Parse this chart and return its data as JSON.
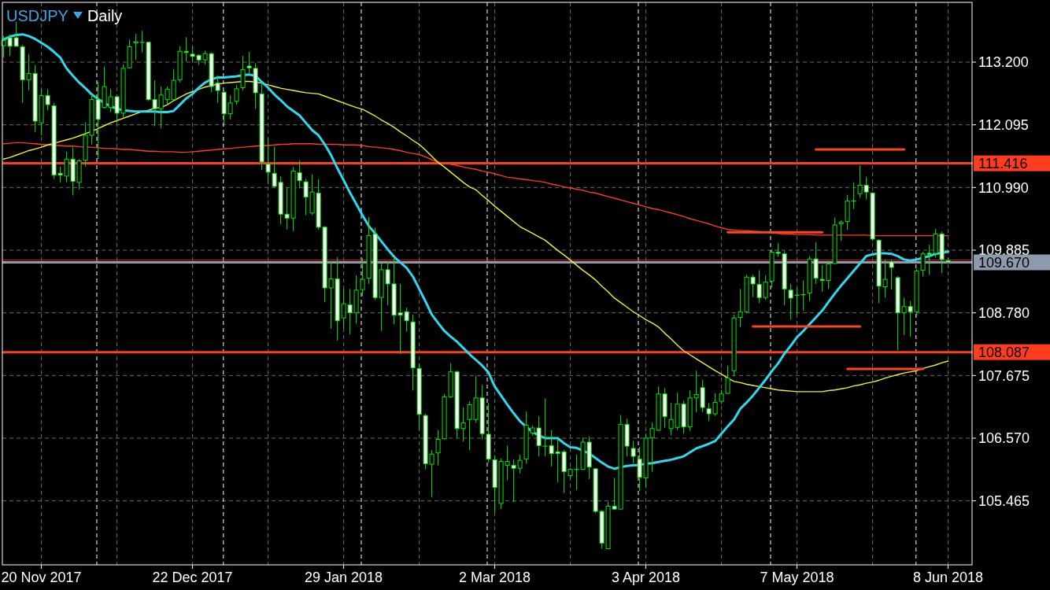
{
  "chart_data": {
    "type": "candlestick",
    "title": "USDJPY",
    "subtitle": "Daily",
    "color": "#00e600",
    "categories": [
      null,
      null,
      null,
      null,
      null,
      null,
      "20 Nov 2017",
      null,
      null,
      null,
      null,
      null,
      null,
      null,
      null,
      null,
      null,
      null,
      null,
      null,
      null,
      null,
      null,
      null,
      null,
      null,
      null,
      null,
      null,
      null,
      "22 Dec 2017",
      null,
      null,
      null,
      null,
      null,
      null,
      null,
      null,
      null,
      null,
      null,
      null,
      null,
      null,
      null,
      null,
      null,
      null,
      null,
      null,
      null,
      null,
      null,
      "29 Jan 2018",
      null,
      null,
      null,
      null,
      null,
      null,
      null,
      null,
      null,
      null,
      null,
      null,
      null,
      null,
      null,
      null,
      null,
      null,
      null,
      null,
      null,
      null,
      null,
      "2 Mar 2018",
      null,
      null,
      null,
      null,
      null,
      null,
      null,
      null,
      null,
      null,
      null,
      null,
      null,
      null,
      null,
      null,
      null,
      null,
      null,
      null,
      null,
      null,
      null,
      "3 Apr 2018",
      null,
      null,
      null,
      null,
      null,
      null,
      null,
      null,
      null,
      null,
      null,
      null,
      null,
      null,
      null,
      null,
      null,
      null,
      null,
      null,
      null,
      null,
      null,
      "7 May 2018",
      null,
      null,
      null,
      null,
      null,
      null,
      null,
      null,
      null,
      null,
      null,
      null,
      null,
      null,
      null,
      null,
      null,
      null,
      null,
      null,
      null,
      null,
      null,
      "8 Jun 2018"
    ],
    "ylim": [
      104.337,
      114.254
    ],
    "yticks": [
      {
        "value": 105.465,
        "label": "105.465"
      },
      {
        "value": 106.57,
        "label": "106.570"
      },
      {
        "value": 107.675,
        "label": "107.675"
      },
      {
        "value": 108.78,
        "label": "108.780"
      },
      {
        "value": 109.885,
        "label": "109.885"
      },
      {
        "value": 110.99,
        "label": "110.990"
      },
      {
        "value": 112.095,
        "label": "112.095"
      },
      {
        "value": 113.2,
        "label": "113.200"
      }
    ],
    "grid": true,
    "ohlc": [
      [
        113.49,
        113.66,
        113.28,
        113.58
      ],
      [
        113.63,
        113.69,
        113.31,
        113.48
      ],
      [
        113.63,
        113.91,
        113.47,
        113.48
      ],
      [
        113.47,
        113.5,
        112.48,
        112.89
      ],
      [
        112.89,
        113.34,
        112.7,
        113.0
      ],
      [
        113.0,
        113.15,
        111.97,
        112.16
      ],
      [
        112.13,
        112.73,
        111.91,
        112.61
      ],
      [
        112.61,
        112.72,
        112.35,
        112.45
      ],
      [
        112.43,
        112.48,
        111.14,
        111.21
      ],
      [
        111.24,
        111.36,
        111.08,
        111.21
      ],
      [
        111.19,
        111.62,
        111.08,
        111.49
      ],
      [
        111.49,
        111.7,
        110.85,
        111.1
      ],
      [
        111.08,
        111.49,
        110.95,
        111.46
      ],
      [
        111.47,
        112.14,
        111.36,
        111.91
      ],
      [
        111.91,
        112.64,
        111.75,
        112.54
      ],
      [
        112.54,
        112.86,
        111.49,
        112.19
      ],
      [
        112.4,
        113.12,
        112.38,
        112.77
      ],
      [
        112.4,
        112.73,
        112.32,
        112.59
      ],
      [
        112.59,
        112.61,
        112.13,
        112.3
      ],
      [
        112.3,
        113.16,
        112.22,
        113.09
      ],
      [
        113.1,
        113.6,
        113.09,
        113.47
      ],
      [
        113.54,
        113.7,
        113.24,
        113.56
      ],
      [
        113.56,
        113.75,
        113.37,
        113.55
      ],
      [
        113.55,
        113.56,
        112.51,
        112.54
      ],
      [
        112.54,
        112.88,
        112.07,
        112.38
      ],
      [
        112.38,
        112.77,
        112.03,
        112.62
      ],
      [
        112.54,
        112.77,
        112.45,
        112.72
      ],
      [
        112.54,
        113.08,
        112.51,
        112.88
      ],
      [
        112.89,
        113.48,
        112.84,
        113.39
      ],
      [
        113.39,
        113.64,
        113.21,
        113.37
      ],
      [
        113.34,
        113.47,
        113.21,
        113.3
      ],
      [
        113.32,
        113.34,
        113.15,
        113.24
      ],
      [
        113.24,
        113.4,
        113.16,
        113.35
      ],
      [
        113.35,
        113.37,
        112.67,
        112.77
      ],
      [
        112.83,
        112.97,
        112.48,
        112.7
      ],
      [
        112.67,
        112.7,
        112.1,
        112.29
      ],
      [
        112.29,
        112.61,
        112.19,
        112.48
      ],
      [
        112.51,
        112.8,
        112.45,
        112.73
      ],
      [
        112.75,
        113.31,
        112.7,
        113.07
      ],
      [
        113.13,
        113.38,
        112.99,
        113.1
      ],
      [
        113.09,
        113.18,
        112.38,
        112.66
      ],
      [
        112.64,
        112.84,
        111.3,
        111.44
      ],
      [
        111.4,
        111.87,
        111.05,
        111.26
      ],
      [
        111.24,
        111.71,
        110.98,
        111.01
      ],
      [
        111.08,
        111.19,
        110.34,
        110.52
      ],
      [
        110.52,
        110.99,
        110.25,
        110.45
      ],
      [
        110.45,
        111.35,
        110.22,
        111.28
      ],
      [
        111.25,
        111.47,
        110.98,
        111.11
      ],
      [
        111.09,
        111.14,
        110.5,
        110.82
      ],
      [
        110.54,
        111.22,
        110.5,
        110.91
      ],
      [
        110.89,
        111.14,
        110.25,
        110.29
      ],
      [
        110.29,
        110.31,
        108.97,
        109.22
      ],
      [
        109.22,
        109.69,
        108.5,
        109.38
      ],
      [
        109.38,
        109.76,
        108.29,
        108.64
      ],
      [
        108.69,
        109.2,
        108.5,
        108.94
      ],
      [
        108.92,
        109.2,
        108.4,
        108.78
      ],
      [
        108.78,
        109.44,
        108.59,
        109.18
      ],
      [
        109.19,
        109.74,
        109.07,
        109.37
      ],
      [
        109.39,
        110.47,
        109.29,
        110.14
      ],
      [
        110.17,
        110.28,
        109.01,
        109.05
      ],
      [
        109.05,
        109.65,
        108.46,
        109.54
      ],
      [
        109.54,
        109.69,
        108.91,
        109.29
      ],
      [
        109.29,
        109.76,
        108.58,
        108.74
      ],
      [
        108.78,
        109.29,
        108.05,
        108.74
      ],
      [
        108.8,
        108.87,
        108.45,
        108.64
      ],
      [
        108.62,
        108.75,
        107.41,
        107.81
      ],
      [
        107.8,
        107.89,
        106.71,
        106.99
      ],
      [
        106.97,
        107.0,
        106.02,
        106.12
      ],
      [
        106.11,
        106.36,
        105.53,
        106.29
      ],
      [
        106.31,
        106.71,
        106.09,
        106.55
      ],
      [
        106.56,
        107.35,
        106.55,
        107.3
      ],
      [
        107.3,
        107.89,
        107.28,
        107.74
      ],
      [
        107.74,
        107.76,
        106.58,
        106.74
      ],
      [
        106.74,
        107.11,
        106.51,
        106.84
      ],
      [
        106.9,
        107.22,
        106.36,
        107.16
      ],
      [
        106.9,
        107.67,
        106.84,
        107.28
      ],
      [
        107.28,
        107.51,
        106.55,
        106.65
      ],
      [
        106.64,
        107.19,
        106.14,
        106.2
      ],
      [
        106.19,
        106.27,
        105.25,
        105.7
      ],
      [
        105.42,
        106.21,
        105.32,
        106.16
      ],
      [
        106.09,
        106.44,
        105.83,
        106.16
      ],
      [
        106.09,
        106.2,
        105.44,
        106.04
      ],
      [
        106.04,
        106.28,
        105.95,
        106.18
      ],
      [
        106.2,
        107.04,
        106.12,
        106.8
      ],
      [
        106.66,
        106.79,
        106.62,
        106.75
      ],
      [
        106.75,
        106.95,
        106.25,
        106.44
      ],
      [
        106.44,
        107.27,
        106.25,
        106.43
      ],
      [
        106.44,
        106.71,
        106.07,
        106.3
      ],
      [
        106.33,
        106.55,
        105.79,
        106.3
      ],
      [
        106.33,
        106.36,
        105.6,
        105.98
      ],
      [
        105.91,
        106.05,
        105.85,
        106.02
      ],
      [
        106.01,
        106.28,
        105.66,
        106.02
      ],
      [
        106.02,
        106.58,
        106.01,
        106.5
      ],
      [
        106.5,
        106.6,
        105.85,
        106.06
      ],
      [
        106.03,
        106.04,
        105.25,
        105.28
      ],
      [
        105.28,
        105.3,
        104.62,
        104.72
      ],
      [
        104.62,
        105.45,
        104.61,
        105.37
      ],
      [
        105.37,
        105.87,
        105.31,
        105.32
      ],
      [
        105.32,
        106.98,
        105.31,
        106.81
      ],
      [
        106.81,
        106.91,
        106.25,
        106.43
      ],
      [
        106.39,
        106.52,
        106.12,
        106.25
      ],
      [
        106.2,
        106.42,
        105.64,
        105.88
      ],
      [
        105.87,
        106.65,
        105.69,
        106.57
      ],
      [
        106.58,
        106.84,
        105.98,
        106.74
      ],
      [
        106.71,
        107.48,
        106.7,
        107.35
      ],
      [
        107.35,
        107.45,
        106.75,
        106.95
      ],
      [
        106.74,
        107.19,
        106.62,
        106.9
      ],
      [
        106.76,
        107.37,
        106.71,
        107.17
      ],
      [
        107.17,
        107.23,
        106.65,
        106.77
      ],
      [
        106.77,
        107.41,
        106.7,
        107.28
      ],
      [
        107.28,
        107.76,
        107.03,
        107.34
      ],
      [
        107.46,
        107.6,
        107.03,
        107.11
      ],
      [
        107.09,
        107.19,
        106.87,
        107.0
      ],
      [
        107.0,
        107.36,
        106.96,
        107.2
      ],
      [
        107.22,
        107.42,
        107.17,
        107.35
      ],
      [
        107.36,
        107.85,
        107.35,
        107.63
      ],
      [
        107.76,
        108.75,
        107.67,
        108.69
      ],
      [
        108.7,
        109.2,
        108.53,
        108.8
      ],
      [
        108.8,
        109.45,
        108.78,
        109.41
      ],
      [
        109.41,
        109.45,
        109.06,
        109.29
      ],
      [
        109.28,
        109.53,
        108.95,
        109.05
      ],
      [
        109.05,
        109.44,
        109.01,
        109.32
      ],
      [
        109.34,
        109.9,
        109.23,
        109.85
      ],
      [
        109.85,
        110.01,
        109.77,
        109.83
      ],
      [
        109.82,
        109.87,
        108.91,
        109.2
      ],
      [
        109.18,
        109.29,
        108.66,
        109.04
      ],
      [
        109.1,
        109.22,
        108.76,
        109.09
      ],
      [
        109.11,
        109.35,
        108.82,
        109.1
      ],
      [
        109.13,
        109.78,
        108.99,
        109.73
      ],
      [
        109.73,
        110.02,
        109.29,
        109.39
      ],
      [
        109.37,
        109.62,
        109.15,
        109.35
      ],
      [
        109.35,
        109.66,
        109.2,
        109.64
      ],
      [
        109.65,
        110.46,
        109.64,
        110.33
      ],
      [
        110.35,
        110.41,
        110.05,
        110.38
      ],
      [
        110.39,
        110.86,
        110.24,
        110.75
      ],
      [
        110.74,
        111.08,
        110.61,
        110.75
      ],
      [
        110.88,
        111.38,
        110.81,
        111.03
      ],
      [
        111.03,
        111.18,
        110.78,
        110.91
      ],
      [
        110.89,
        110.91,
        110.05,
        110.08
      ],
      [
        110.06,
        110.08,
        108.95,
        109.25
      ],
      [
        109.24,
        109.72,
        109.05,
        109.37
      ],
      [
        109.68,
        109.72,
        109.19,
        109.58
      ],
      [
        109.4,
        109.43,
        108.12,
        108.78
      ],
      [
        108.78,
        109.05,
        108.39,
        108.89
      ],
      [
        108.89,
        108.99,
        108.36,
        108.8
      ],
      [
        108.8,
        109.55,
        108.72,
        109.52
      ],
      [
        109.53,
        109.86,
        109.42,
        109.82
      ],
      [
        109.83,
        109.98,
        109.45,
        109.81
      ],
      [
        109.83,
        110.26,
        109.75,
        110.17
      ],
      [
        110.17,
        110.21,
        109.48,
        109.72
      ],
      [
        109.7,
        109.75,
        109.65,
        109.67
      ]
    ],
    "series": [
      {
        "type": "line",
        "color": "#ff3b22",
        "values": [
          111.76,
          111.77,
          111.78,
          111.78,
          111.77,
          111.76,
          111.75,
          111.74,
          111.73,
          111.73,
          111.72,
          111.72,
          111.71,
          111.7,
          111.7,
          111.69,
          111.68,
          111.68,
          111.67,
          111.66,
          111.66,
          111.65,
          111.64,
          111.63,
          111.63,
          111.62,
          111.62,
          111.62,
          111.61,
          111.61,
          111.62,
          111.63,
          111.64,
          111.65,
          111.66,
          111.67,
          111.68,
          111.69,
          111.7,
          111.71,
          111.72,
          111.73,
          111.73,
          111.74,
          111.75,
          111.75,
          111.76,
          111.76,
          111.76,
          111.76,
          111.75,
          111.75,
          111.75,
          111.75,
          111.74,
          111.74,
          111.74,
          111.73,
          111.71,
          111.7,
          111.69,
          111.68,
          111.66,
          111.64,
          111.61,
          111.59,
          111.57,
          111.53,
          111.48,
          111.44,
          111.42,
          111.4,
          111.38,
          111.35,
          111.33,
          111.31,
          111.28,
          111.26,
          111.23,
          111.2,
          111.17,
          111.16,
          111.14,
          111.13,
          111.11,
          111.1,
          111.08,
          111.05,
          111.03,
          111.0,
          110.98,
          110.96,
          110.94,
          110.91,
          110.89,
          110.86,
          110.83,
          110.8,
          110.77,
          110.74,
          110.71,
          110.68,
          110.65,
          110.62,
          110.6,
          110.57,
          110.54,
          110.51,
          110.48,
          110.44,
          110.41,
          110.38,
          110.35,
          110.31,
          110.28,
          110.25,
          110.24,
          110.23,
          110.23,
          110.22,
          110.21,
          110.2,
          110.19,
          110.18,
          110.17,
          110.17,
          110.16,
          110.16,
          110.16,
          110.15,
          110.15,
          110.15,
          110.15,
          110.15,
          110.15,
          110.15,
          110.15,
          110.15,
          110.14,
          110.14,
          110.14,
          110.14,
          110.14,
          110.14,
          110.14,
          110.14,
          110.14,
          110.14,
          110.14,
          110.14,
          110.14
        ]
      },
      {
        "type": "line",
        "color": "#f0f032",
        "values": [
          111.49,
          111.52,
          111.56,
          111.6,
          111.64,
          111.67,
          111.7,
          111.74,
          111.77,
          111.8,
          111.83,
          111.86,
          111.9,
          111.94,
          111.98,
          112.03,
          112.08,
          112.13,
          112.17,
          112.21,
          112.25,
          112.29,
          112.33,
          112.35,
          112.39,
          112.4,
          112.45,
          112.52,
          112.58,
          112.64,
          112.68,
          112.72,
          112.76,
          112.79,
          112.81,
          112.83,
          112.84,
          112.85,
          112.86,
          112.86,
          112.85,
          112.83,
          112.8,
          112.77,
          112.74,
          112.72,
          112.7,
          112.68,
          112.66,
          112.65,
          112.64,
          112.6,
          112.56,
          112.52,
          112.48,
          112.44,
          112.4,
          112.37,
          112.31,
          112.25,
          112.18,
          112.12,
          112.05,
          111.97,
          111.9,
          111.82,
          111.75,
          111.65,
          111.54,
          111.43,
          111.35,
          111.26,
          111.17,
          111.08,
          111.0,
          110.95,
          110.85,
          110.76,
          110.66,
          110.57,
          110.48,
          110.39,
          110.3,
          110.24,
          110.18,
          110.12,
          110.06,
          109.97,
          109.88,
          109.8,
          109.71,
          109.62,
          109.53,
          109.45,
          109.36,
          109.25,
          109.15,
          109.04,
          108.96,
          108.88,
          108.8,
          108.73,
          108.66,
          108.6,
          108.53,
          108.42,
          108.32,
          108.21,
          108.11,
          108.04,
          107.97,
          107.9,
          107.83,
          107.76,
          107.7,
          107.63,
          107.57,
          107.55,
          107.52,
          107.5,
          107.48,
          107.46,
          107.44,
          107.42,
          107.41,
          107.4,
          107.39,
          107.39,
          107.39,
          107.39,
          107.39,
          107.41,
          107.42,
          107.44,
          107.46,
          107.49,
          107.51,
          107.54,
          107.56,
          107.59,
          107.63,
          107.66,
          107.69,
          107.72,
          107.74,
          107.76,
          107.8,
          107.83,
          107.86,
          107.9,
          107.93
        ]
      },
      {
        "type": "line",
        "color": "#2ed8f0",
        "values": [
          113.6,
          113.65,
          113.68,
          113.69,
          113.66,
          113.61,
          113.54,
          113.47,
          113.38,
          113.28,
          113.09,
          112.96,
          112.84,
          112.74,
          112.63,
          112.55,
          112.48,
          112.42,
          112.38,
          112.35,
          112.34,
          112.33,
          112.33,
          112.33,
          112.33,
          112.32,
          112.32,
          112.34,
          112.45,
          112.56,
          112.64,
          112.75,
          112.84,
          112.9,
          112.93,
          112.93,
          112.94,
          112.95,
          112.97,
          112.98,
          112.96,
          112.85,
          112.75,
          112.63,
          112.53,
          112.42,
          112.34,
          112.26,
          112.13,
          112.0,
          111.91,
          111.75,
          111.56,
          111.33,
          111.12,
          110.9,
          110.7,
          110.5,
          110.31,
          110.18,
          110.04,
          109.9,
          109.77,
          109.67,
          109.57,
          109.42,
          109.2,
          108.98,
          108.75,
          108.6,
          108.46,
          108.36,
          108.27,
          108.16,
          108.05,
          107.95,
          107.85,
          107.73,
          107.48,
          107.32,
          107.16,
          107.01,
          106.87,
          106.77,
          106.68,
          106.62,
          106.57,
          106.57,
          106.57,
          106.48,
          106.41,
          106.4,
          106.35,
          106.3,
          106.22,
          106.14,
          106.07,
          106.03,
          106.06,
          106.08,
          106.09,
          106.1,
          106.12,
          106.13,
          106.15,
          106.17,
          106.19,
          106.22,
          106.25,
          106.32,
          106.39,
          106.43,
          106.47,
          106.52,
          106.65,
          106.78,
          106.9,
          107.09,
          107.2,
          107.32,
          107.46,
          107.6,
          107.75,
          107.89,
          108.06,
          108.2,
          108.35,
          108.46,
          108.58,
          108.7,
          108.82,
          108.97,
          109.12,
          109.26,
          109.39,
          109.52,
          109.65,
          109.78,
          109.81,
          109.83,
          109.83,
          109.82,
          109.78,
          109.72,
          109.7,
          109.72,
          109.75,
          109.78,
          109.82,
          109.84,
          109.86
        ]
      },
      {
        "type": "line",
        "color": "#ff4422",
        "values": [
          null,
          null,
          null,
          null,
          null,
          null,
          null,
          null,
          null,
          null,
          null,
          null,
          null,
          null,
          null,
          null,
          null,
          null,
          null,
          null,
          null,
          null,
          null,
          null,
          null,
          null,
          null,
          null,
          null,
          null,
          null,
          null,
          null,
          null,
          null,
          null,
          null,
          null,
          null,
          null,
          null,
          null,
          null,
          null,
          null,
          null,
          null,
          null,
          null,
          null,
          null,
          null,
          null,
          null,
          null,
          null,
          null,
          null,
          null,
          null,
          null,
          null,
          null,
          null,
          null,
          null,
          null,
          null,
          null,
          null,
          null,
          null,
          null,
          null,
          null,
          null,
          null,
          null,
          null,
          null,
          null,
          null,
          null,
          null,
          null,
          null,
          null,
          null,
          null,
          null,
          null,
          null,
          null,
          null,
          null,
          null,
          null,
          null,
          null,
          null,
          null,
          null,
          null,
          null,
          null,
          null,
          null,
          null,
          null,
          null,
          null,
          null,
          null,
          null,
          null,
          null,
          null,
          null,
          null,
          null,
          null,
          null,
          null,
          null,
          null,
          null,
          null,
          null,
          null,
          111.66,
          111.66,
          111.66,
          111.66,
          111.66,
          111.66,
          111.66,
          111.66,
          111.66,
          111.66,
          111.66,
          111.66,
          111.66,
          111.66,
          111.66,
          null,
          null,
          null,
          null,
          null,
          null,
          null
        ]
      },
      {
        "type": "line",
        "color": "#ff4422",
        "values": [
          null,
          null,
          null,
          null,
          null,
          null,
          null,
          null,
          null,
          null,
          null,
          null,
          null,
          null,
          null,
          null,
          null,
          null,
          null,
          null,
          null,
          null,
          null,
          null,
          null,
          null,
          null,
          null,
          null,
          null,
          null,
          null,
          null,
          null,
          null,
          null,
          null,
          null,
          null,
          null,
          null,
          null,
          null,
          null,
          null,
          null,
          null,
          null,
          null,
          null,
          null,
          null,
          null,
          null,
          null,
          null,
          null,
          null,
          null,
          null,
          null,
          null,
          null,
          null,
          null,
          null,
          null,
          null,
          null,
          null,
          null,
          null,
          null,
          null,
          null,
          null,
          null,
          null,
          null,
          null,
          null,
          null,
          null,
          null,
          null,
          null,
          null,
          null,
          null,
          null,
          null,
          null,
          null,
          null,
          null,
          null,
          null,
          null,
          null,
          null,
          null,
          null,
          null,
          null,
          null,
          null,
          null,
          null,
          null,
          null,
          null,
          null,
          null,
          null,
          null,
          110.2,
          110.2,
          110.2,
          110.2,
          110.2,
          110.2,
          110.2,
          110.2,
          110.2,
          110.2,
          110.2,
          110.2,
          110.2,
          110.2,
          110.2,
          110.2,
          null,
          null,
          null,
          null,
          null,
          null,
          null,
          null,
          null,
          null,
          null,
          null,
          null,
          null,
          null,
          null,
          null,
          null,
          null,
          null
        ]
      },
      {
        "type": "line",
        "color": "#ff4422",
        "values": [
          null,
          null,
          null,
          null,
          null,
          null,
          null,
          null,
          null,
          null,
          null,
          null,
          null,
          null,
          null,
          null,
          null,
          null,
          null,
          null,
          null,
          null,
          null,
          null,
          null,
          null,
          null,
          null,
          null,
          null,
          null,
          null,
          null,
          null,
          null,
          null,
          null,
          null,
          null,
          null,
          null,
          null,
          null,
          null,
          null,
          null,
          null,
          null,
          null,
          null,
          null,
          null,
          null,
          null,
          null,
          null,
          null,
          null,
          null,
          null,
          null,
          null,
          null,
          null,
          null,
          null,
          null,
          null,
          null,
          null,
          null,
          null,
          null,
          null,
          null,
          null,
          null,
          null,
          null,
          null,
          null,
          null,
          null,
          null,
          null,
          null,
          null,
          null,
          null,
          null,
          null,
          null,
          null,
          null,
          null,
          null,
          null,
          null,
          null,
          null,
          null,
          null,
          null,
          null,
          null,
          null,
          null,
          null,
          null,
          null,
          null,
          null,
          null,
          null,
          null,
          null,
          null,
          null,
          null,
          108.54,
          108.54,
          108.54,
          108.54,
          108.54,
          108.54,
          108.54,
          108.54,
          108.54,
          108.54,
          108.54,
          108.54,
          108.54,
          108.54,
          108.54,
          108.54,
          108.54,
          108.54,
          null,
          null,
          null,
          null,
          null,
          null,
          null,
          null,
          null,
          null,
          null,
          null,
          null,
          null
        ]
      },
      {
        "type": "line",
        "color": "#ff4422",
        "values": [
          null,
          null,
          null,
          null,
          null,
          null,
          null,
          null,
          null,
          null,
          null,
          null,
          null,
          null,
          null,
          null,
          null,
          null,
          null,
          null,
          null,
          null,
          null,
          null,
          null,
          null,
          null,
          null,
          null,
          null,
          null,
          null,
          null,
          null,
          null,
          null,
          null,
          null,
          null,
          null,
          null,
          null,
          null,
          null,
          null,
          null,
          null,
          null,
          null,
          null,
          null,
          null,
          null,
          null,
          null,
          null,
          null,
          null,
          null,
          null,
          null,
          null,
          null,
          null,
          null,
          null,
          null,
          null,
          null,
          null,
          null,
          null,
          null,
          null,
          null,
          null,
          null,
          null,
          null,
          null,
          null,
          null,
          null,
          null,
          null,
          null,
          null,
          null,
          null,
          null,
          null,
          null,
          null,
          null,
          null,
          null,
          null,
          null,
          null,
          null,
          null,
          null,
          null,
          null,
          null,
          null,
          null,
          null,
          null,
          null,
          null,
          null,
          null,
          null,
          null,
          null,
          null,
          null,
          null,
          null,
          null,
          null,
          null,
          null,
          null,
          null,
          null,
          null,
          null,
          null,
          null,
          null,
          null,
          null,
          107.79,
          107.79,
          107.79,
          107.79,
          107.79,
          107.79,
          107.79,
          107.79,
          107.79,
          107.79,
          107.79,
          107.79,
          107.79,
          null,
          null,
          null,
          null
        ]
      }
    ],
    "ref_lines": [
      {
        "axis": "y",
        "value": 109.71,
        "color": "#e0201c",
        "line_style": "solid"
      },
      {
        "axis": "y",
        "value": 109.67,
        "label": "109.670",
        "color": "#8c9aab",
        "line_style": "solid"
      },
      {
        "axis": "y",
        "value": 111.416,
        "label": "111.416",
        "color": "#ff3c1e",
        "line_style": "solid"
      },
      {
        "axis": "y",
        "value": 108.087,
        "label": "108.087",
        "color": "#ff3c1e",
        "line_style": "solid"
      }
    ]
  }
}
